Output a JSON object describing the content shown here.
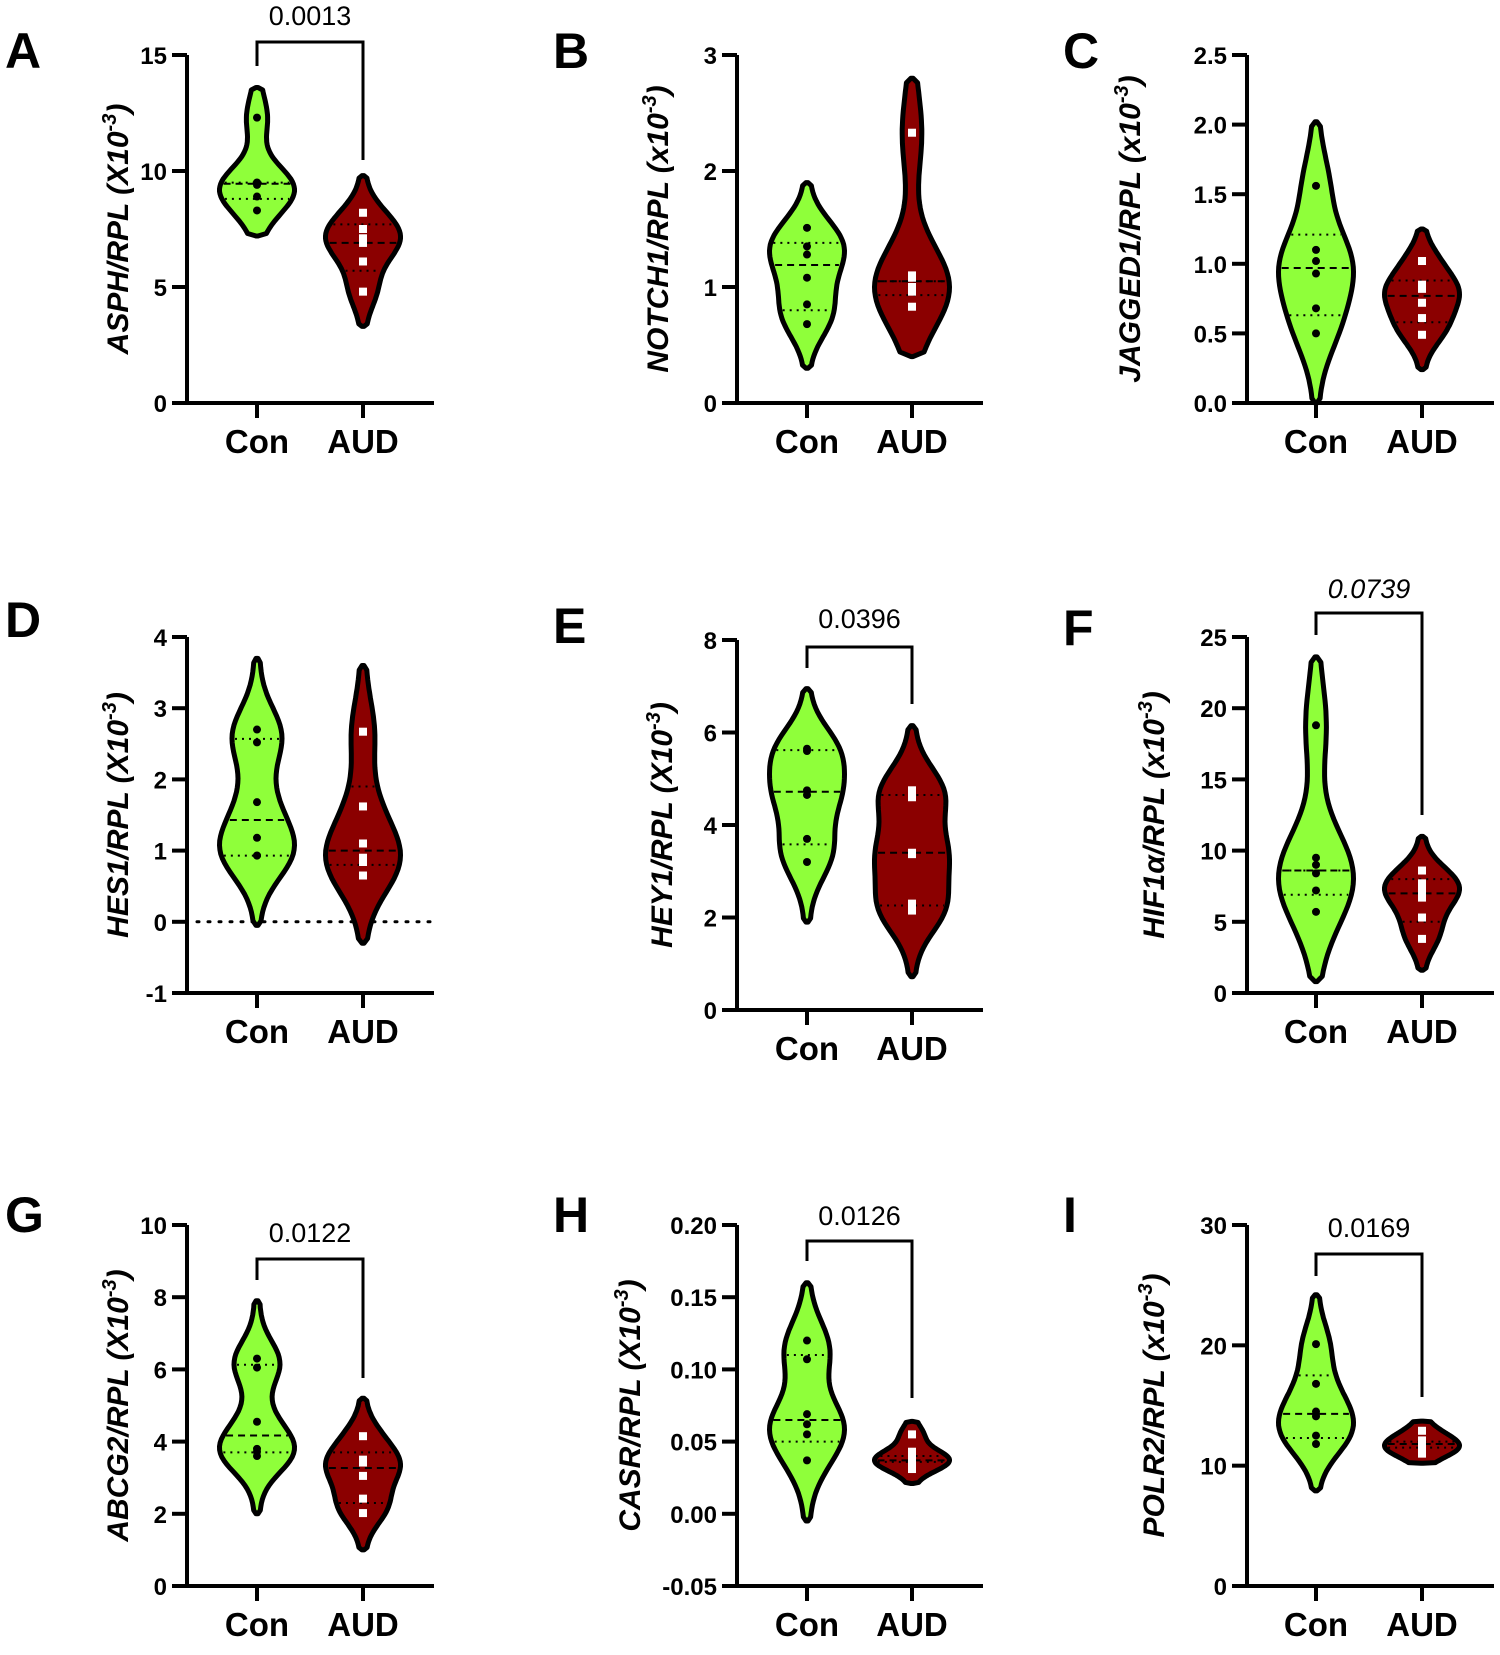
{
  "figure": {
    "group_colors": {
      "Con": "#8fff3a",
      "AUD": "#8b0000"
    },
    "point_colors": {
      "Con": "#000000",
      "AUD": "#ffffff"
    },
    "outline_color": "#000000"
  },
  "chart_data": [
    {
      "type": "violin",
      "panel": "A",
      "ylabel_gene": "ASPH/RPL",
      "ylabel_unit": "(X10",
      "ylabel_exp": "-3",
      "ylim": [
        0,
        15
      ],
      "yticks": [
        "0",
        "5",
        "10",
        "15"
      ],
      "categories": [
        "Con",
        "AUD"
      ],
      "series": [
        {
          "name": "Con",
          "values": [
            12.3,
            9.5,
            9.5,
            9.4,
            8.9,
            8.3
          ],
          "median": 9.45,
          "q1": 8.8,
          "q3": 9.5,
          "range": [
            7.2,
            13.6
          ]
        },
        {
          "name": "AUD",
          "values": [
            8.2,
            7.5,
            7.1,
            6.9,
            6.1,
            4.8
          ],
          "median": 6.9,
          "q1": 5.7,
          "q3": 7.7,
          "range": [
            3.3,
            9.8
          ]
        }
      ],
      "significance": {
        "label": "0.0013",
        "italic": false
      }
    },
    {
      "type": "violin",
      "panel": "B",
      "ylabel_gene": "NOTCH1/RPL",
      "ylabel_unit": "(x10",
      "ylabel_exp": "-3",
      "ylim": [
        0,
        3
      ],
      "yticks": [
        "0",
        "1",
        "2",
        "3"
      ],
      "categories": [
        "Con",
        "AUD"
      ],
      "series": [
        {
          "name": "Con",
          "values": [
            1.51,
            1.35,
            1.28,
            1.08,
            0.85,
            0.68
          ],
          "median": 1.19,
          "q1": 0.8,
          "q3": 1.38,
          "range": [
            0.3,
            1.9
          ]
        },
        {
          "name": "AUD",
          "values": [
            2.33,
            1.1,
            1.08,
            1.0,
            0.96,
            0.83
          ],
          "median": 1.05,
          "q1": 0.93,
          "q3": 1.05,
          "range": [
            0.4,
            2.8
          ]
        }
      ],
      "significance": null
    },
    {
      "type": "violin",
      "panel": "C",
      "ylabel_gene": "JAGGED1/RPL",
      "ylabel_unit": "(x10",
      "ylabel_exp": "-3",
      "ylim": [
        0,
        2.5
      ],
      "yticks": [
        "0.0",
        "0.5",
        "1.0",
        "1.5",
        "2.0",
        "2.5"
      ],
      "categories": [
        "Con",
        "AUD"
      ],
      "series": [
        {
          "name": "Con",
          "values": [
            1.56,
            1.1,
            1.02,
            0.93,
            0.68,
            0.5
          ],
          "median": 0.97,
          "q1": 0.63,
          "q3": 1.21,
          "range": [
            0.0,
            2.02
          ]
        },
        {
          "name": "AUD",
          "values": [
            1.02,
            0.85,
            0.82,
            0.72,
            0.61,
            0.49
          ],
          "median": 0.77,
          "q1": 0.58,
          "q3": 0.88,
          "range": [
            0.24,
            1.25
          ]
        }
      ],
      "significance": null
    },
    {
      "type": "violin",
      "panel": "D",
      "ylabel_gene": "HES1/RPL",
      "ylabel_unit": "(X10",
      "ylabel_exp": "-3",
      "ylim": [
        -1,
        4
      ],
      "yticks": [
        "-1",
        "0",
        "1",
        "2",
        "3",
        "4"
      ],
      "categories": [
        "Con",
        "AUD"
      ],
      "series": [
        {
          "name": "Con",
          "values": [
            2.7,
            2.52,
            1.68,
            1.18,
            0.93,
            0.93
          ],
          "median": 1.43,
          "q1": 0.93,
          "q3": 2.57,
          "range": [
            -0.05,
            3.7
          ]
        },
        {
          "name": "AUD",
          "values": [
            2.67,
            1.62,
            1.1,
            0.9,
            0.84,
            0.65
          ],
          "median": 1.0,
          "q1": 0.8,
          "q3": 1.9,
          "range": [
            -0.3,
            3.6
          ]
        }
      ],
      "reference_line": 0,
      "significance": null
    },
    {
      "type": "violin",
      "panel": "E",
      "ylabel_gene": "HEY1/RPL",
      "ylabel_unit": "(X10",
      "ylabel_exp": "-3",
      "ylim": [
        0,
        8
      ],
      "yticks": [
        "0",
        "2",
        "4",
        "6",
        "8"
      ],
      "categories": [
        "Con",
        "AUD"
      ],
      "series": [
        {
          "name": "Con",
          "values": [
            5.65,
            5.6,
            4.75,
            4.65,
            3.7,
            3.2
          ],
          "median": 4.72,
          "q1": 3.58,
          "q3": 5.62,
          "range": [
            1.9,
            6.95
          ]
        },
        {
          "name": "AUD",
          "values": [
            4.75,
            4.6,
            3.4,
            3.37,
            2.3,
            2.15
          ],
          "median": 3.4,
          "q1": 2.26,
          "q3": 4.65,
          "range": [
            0.72,
            6.15
          ]
        }
      ],
      "significance": {
        "label": "0.0396",
        "italic": false
      }
    },
    {
      "type": "violin",
      "panel": "F",
      "ylabel_gene": "HIF1α/RPL",
      "ylabel_unit": "(x10",
      "ylabel_exp": "-3",
      "ylim": [
        0,
        25
      ],
      "yticks": [
        "0",
        "5",
        "10",
        "15",
        "20",
        "25"
      ],
      "categories": [
        "Con",
        "AUD"
      ],
      "series": [
        {
          "name": "Con",
          "values": [
            18.8,
            9.5,
            9.0,
            8.4,
            7.2,
            5.7
          ],
          "median": 8.6,
          "q1": 6.9,
          "q3": 8.6,
          "range": [
            0.8,
            23.6
          ]
        },
        {
          "name": "AUD",
          "values": [
            8.6,
            7.7,
            7.2,
            6.7,
            5.3,
            3.8
          ],
          "median": 7.0,
          "q1": 5.0,
          "q3": 8.0,
          "range": [
            1.6,
            11.0
          ]
        }
      ],
      "significance": {
        "label": "0.0739",
        "italic": true
      }
    },
    {
      "type": "violin",
      "panel": "G",
      "ylabel_gene": "ABCG2/RPL",
      "ylabel_unit": "(X10",
      "ylabel_exp": "-3",
      "ylim": [
        0,
        10
      ],
      "yticks": [
        "0",
        "2",
        "4",
        "6",
        "8",
        "10"
      ],
      "categories": [
        "Con",
        "AUD"
      ],
      "series": [
        {
          "name": "Con",
          "values": [
            6.3,
            6.05,
            4.55,
            3.8,
            3.72,
            3.6
          ],
          "median": 4.17,
          "q1": 3.7,
          "q3": 6.13,
          "range": [
            2.0,
            7.9
          ]
        },
        {
          "name": "AUD",
          "values": [
            4.15,
            3.5,
            3.42,
            3.05,
            2.42,
            2.02
          ],
          "median": 3.27,
          "q1": 2.3,
          "q3": 3.7,
          "range": [
            1.0,
            5.2
          ]
        }
      ],
      "significance": {
        "label": "0.0122",
        "italic": false
      }
    },
    {
      "type": "violin",
      "panel": "H",
      "ylabel_gene": "CASR/RPL",
      "ylabel_unit": "(X10",
      "ylabel_exp": "-3",
      "ylim": [
        -0.05,
        0.2
      ],
      "yticks": [
        "-0.05",
        "0.00",
        "0.05",
        "0.10",
        "0.15",
        "0.20"
      ],
      "categories": [
        "Con",
        "AUD"
      ],
      "series": [
        {
          "name": "Con",
          "values": [
            0.12,
            0.107,
            0.069,
            0.062,
            0.055,
            0.037
          ],
          "median": 0.065,
          "q1": 0.05,
          "q3": 0.11,
          "range": [
            -0.005,
            0.16
          ]
        },
        {
          "name": "AUD",
          "values": [
            0.055,
            0.043,
            0.038,
            0.037,
            0.036,
            0.031
          ],
          "median": 0.037,
          "q1": 0.036,
          "q3": 0.04,
          "range": [
            0.021,
            0.064
          ]
        }
      ],
      "significance": {
        "label": "0.0126",
        "italic": false
      }
    },
    {
      "type": "violin",
      "panel": "I",
      "ylabel_gene": "POLR2/RPL",
      "ylabel_unit": "(x10",
      "ylabel_exp": "-3",
      "ylim": [
        0,
        30
      ],
      "yticks": [
        "0",
        "10",
        "20",
        "30"
      ],
      "categories": [
        "Con",
        "AUD"
      ],
      "series": [
        {
          "name": "Con",
          "values": [
            20.1,
            16.8,
            14.5,
            14.1,
            12.5,
            11.8
          ],
          "median": 14.3,
          "q1": 12.3,
          "q3": 17.5,
          "range": [
            7.9,
            24.2
          ]
        },
        {
          "name": "AUD",
          "values": [
            12.9,
            12.1,
            11.9,
            11.6,
            11.2,
            11.0
          ],
          "median": 11.8,
          "q1": 11.5,
          "q3": 12.0,
          "range": [
            10.2,
            13.7
          ]
        }
      ],
      "significance": {
        "label": "0.0169",
        "italic": false
      }
    }
  ]
}
